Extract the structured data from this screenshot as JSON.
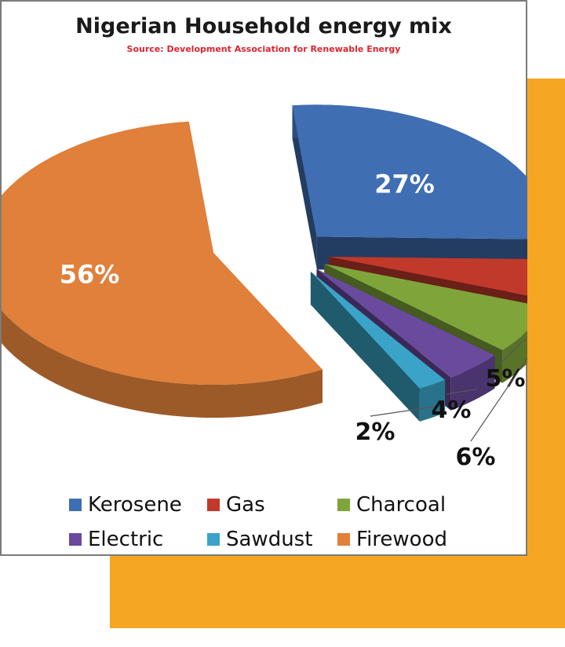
{
  "chart_data": {
    "type": "pie",
    "title": "Nigerian Household energy mix",
    "subtitle": "Source: Development Association for Renewable Energy",
    "legend_position": "bottom",
    "slices": [
      {
        "name": "Kerosene",
        "value": 27,
        "label": "27%",
        "color": "#3f6eb3"
      },
      {
        "name": "Gas",
        "value": 5,
        "label": "5%",
        "color": "#c0392b"
      },
      {
        "name": "Charcoal",
        "value": 6,
        "label": "6%",
        "color": "#7fa53a"
      },
      {
        "name": "Electric",
        "value": 4,
        "label": "4%",
        "color": "#6a4a9c"
      },
      {
        "name": "Sawdust",
        "value": 2,
        "label": "2%",
        "color": "#3aa3c7"
      },
      {
        "name": "Firewood",
        "value": 56,
        "label": "56%",
        "color": "#e0803a"
      }
    ]
  },
  "colors": {
    "accent": "#f5a623"
  }
}
